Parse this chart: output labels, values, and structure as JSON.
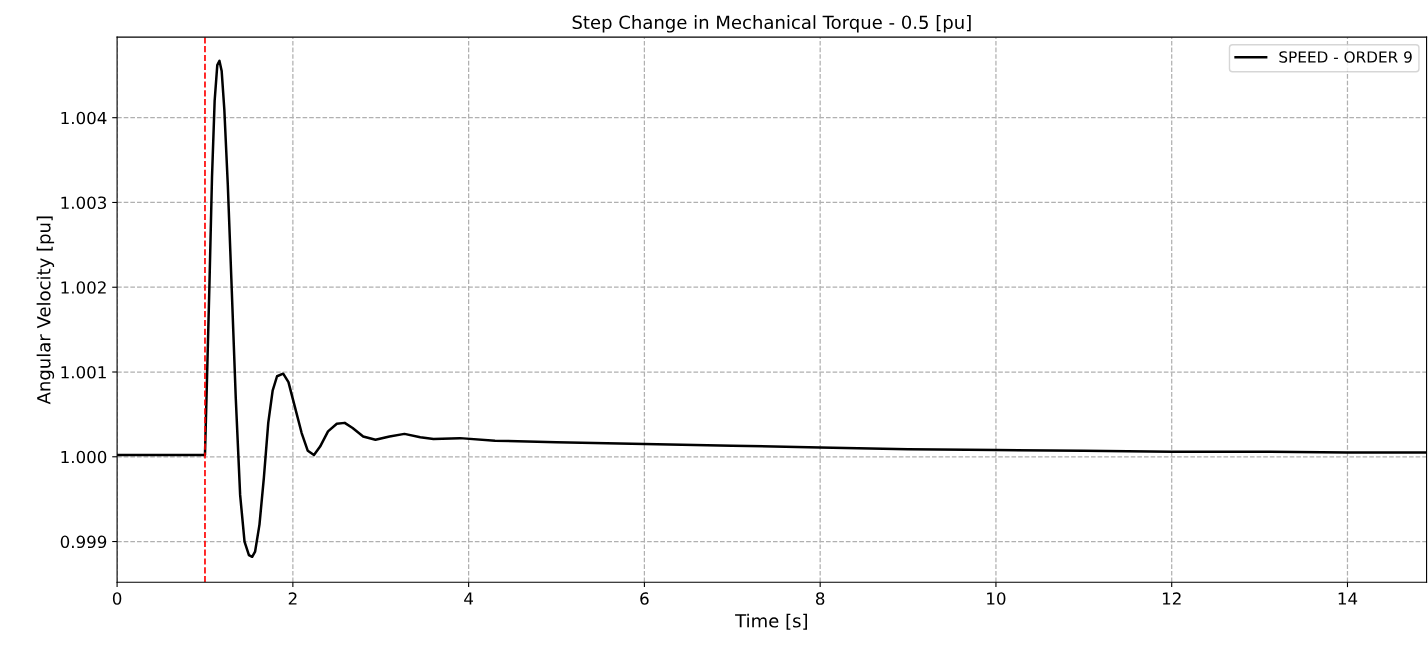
{
  "chart_data": {
    "type": "line",
    "title": "Step Change in Mechanical Torque - 0.5 [pu]",
    "xlabel": "Time [s]",
    "ylabel": "Angular Velocity [pu]",
    "x": [
      0,
      1.0,
      1.02,
      1.05,
      1.08,
      1.11,
      1.14,
      1.165,
      1.19,
      1.22,
      1.26,
      1.3,
      1.35,
      1.4,
      1.45,
      1.5,
      1.537,
      1.57,
      1.62,
      1.67,
      1.72,
      1.77,
      1.82,
      1.89,
      1.95,
      2.02,
      2.1,
      2.17,
      2.24,
      2.31,
      2.4,
      2.5,
      2.59,
      2.68,
      2.8,
      2.94,
      3.1,
      3.27,
      3.45,
      3.6,
      3.9,
      4.3,
      5,
      6,
      7,
      8,
      9,
      10,
      11,
      12,
      13,
      14,
      14.9
    ],
    "series": [
      {
        "name": "SPEED - ORDER 9",
        "color": "#000000",
        "values": [
          1.00002,
          1.00002,
          1.0008,
          1.002,
          1.0033,
          1.0042,
          1.00462,
          1.00467,
          1.00455,
          1.0041,
          1.0032,
          1.0021,
          1.0007,
          0.99955,
          0.999,
          0.99884,
          0.99882,
          0.99888,
          0.9992,
          0.99975,
          1.0004,
          1.00078,
          1.00095,
          1.00098,
          1.00088,
          1.0006,
          1.00028,
          1.00007,
          1.00002,
          1.00012,
          1.0003,
          1.00039,
          1.0004,
          1.00034,
          1.00024,
          1.0002,
          1.00024,
          1.00027,
          1.00023,
          1.00021,
          1.00022,
          1.00019,
          1.00017,
          1.00015,
          1.00013,
          1.00011,
          1.00009,
          1.00008,
          1.00007,
          1.00006,
          1.00006,
          1.00005,
          1.00005
        ]
      }
    ],
    "xlim": [
      0,
      14.9
    ],
    "xticks": [
      0,
      2,
      4,
      6,
      8,
      10,
      12,
      14
    ],
    "ylim": [
      0.99852,
      1.00495
    ],
    "yticks": [
      {
        "value": 0.999,
        "label": "0.999"
      },
      {
        "value": 1.0,
        "label": "1.000"
      },
      {
        "value": 1.001,
        "label": "1.001"
      },
      {
        "value": 1.002,
        "label": "1.002"
      },
      {
        "value": 1.003,
        "label": "1.003"
      },
      {
        "value": 1.004,
        "label": "1.004"
      }
    ],
    "ref_lines": [
      {
        "axis": "x",
        "value": 1,
        "color": "#ff0000",
        "line_style": "dashed"
      }
    ],
    "grid": true,
    "legend": "top right",
    "line_style": "solid",
    "marker": "none"
  }
}
